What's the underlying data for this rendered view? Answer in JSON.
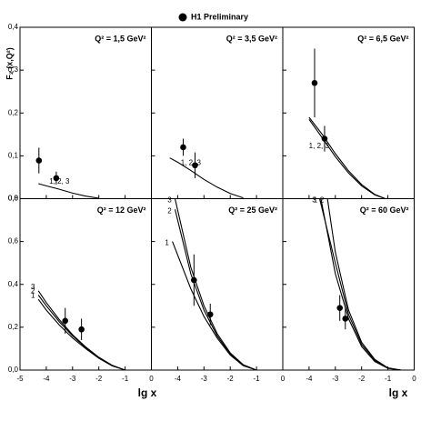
{
  "legend": "H1 Preliminary",
  "ylabel": "F₂ (x,Q²)",
  "xlabel": "lg x",
  "chart_data": [
    {
      "type": "scatter",
      "title": "Q² = 1,5 GeV²",
      "xlim": [
        -5,
        0
      ],
      "ylim": [
        0,
        0.4
      ],
      "yticks": [
        {
          "value": 0,
          "label": "0,0"
        },
        {
          "value": 0.1,
          "label": "0,1"
        },
        {
          "value": 0.2,
          "label": "0,2"
        },
        {
          "value": 0.3,
          "label": "0,3"
        },
        {
          "value": 0.4,
          "label": "0,4"
        }
      ],
      "x": [
        -4.28,
        -3.62
      ],
      "values": [
        0.089,
        0.048
      ],
      "errors": [
        0.03,
        0.015
      ],
      "curve_label": "1, 2, 3",
      "curves": [
        {
          "x": [
            -4.3,
            -4,
            -3.5,
            -3,
            -2.5,
            -2
          ],
          "values": [
            0.035,
            0.03,
            0.022,
            0.013,
            0.006,
            0.001
          ]
        }
      ]
    },
    {
      "type": "scatter",
      "title": "Q² = 3,5 GeV²",
      "xlim": [
        -5,
        0
      ],
      "ylim": [
        0,
        0.4
      ],
      "x": [
        -3.79,
        -3.34
      ],
      "values": [
        0.12,
        0.078
      ],
      "errors": [
        0.02,
        0.03
      ],
      "curve_label": "1, 2, 3",
      "curves": [
        {
          "x": [
            -4.3,
            -4,
            -3.5,
            -3,
            -2.5,
            -2,
            -1.5
          ],
          "values": [
            0.095,
            0.085,
            0.066,
            0.045,
            0.027,
            0.012,
            0.002
          ]
        }
      ]
    },
    {
      "type": "scatter",
      "title": "Q² = 6,5 GeV²",
      "xlim": [
        -5,
        0
      ],
      "ylim": [
        0,
        0.4
      ],
      "x": [
        -3.79,
        -3.41
      ],
      "values": [
        0.27,
        0.14
      ],
      "errors": [
        0.08,
        0.03
      ],
      "curve_label": "1, 2, 3",
      "curves": [
        {
          "x": [
            -4,
            -3.5,
            -3,
            -2.5,
            -2,
            -1.5,
            -1.1
          ],
          "values": [
            0.19,
            0.15,
            0.105,
            0.065,
            0.033,
            0.01,
            0
          ]
        },
        {
          "x": [
            -4,
            -3.5,
            -3,
            -2.5,
            -2,
            -1.5,
            -1.1
          ],
          "values": [
            0.185,
            0.142,
            0.098,
            0.06,
            0.03,
            0.009,
            0
          ]
        }
      ]
    },
    {
      "type": "scatter",
      "title": "Q² = 12 GeV²",
      "xlim": [
        -5,
        0
      ],
      "ylim": [
        0,
        0.8
      ],
      "xticks": [
        -5,
        -4,
        -3,
        -2,
        -1,
        0
      ],
      "yticks": [
        {
          "value": 0,
          "label": "0,0"
        },
        {
          "value": 0.2,
          "label": "0,2"
        },
        {
          "value": 0.4,
          "label": "0,4"
        },
        {
          "value": 0.6,
          "label": "0,6"
        },
        {
          "value": 0.8,
          "label": "0,8"
        }
      ],
      "x": [
        -3.28,
        -2.66
      ],
      "values": [
        0.23,
        0.19
      ],
      "errors": [
        0.06,
        0.05
      ],
      "curves": [
        {
          "name": "1",
          "x": [
            -4.3,
            -4,
            -3.5,
            -3,
            -2.5,
            -2,
            -1.5,
            -1
          ],
          "values": [
            0.33,
            0.28,
            0.21,
            0.15,
            0.1,
            0.055,
            0.02,
            0
          ]
        },
        {
          "name": "2",
          "x": [
            -4.3,
            -4,
            -3.5,
            -3,
            -2.5,
            -2,
            -1.5,
            -1
          ],
          "values": [
            0.35,
            0.3,
            0.225,
            0.16,
            0.105,
            0.058,
            0.022,
            0
          ]
        },
        {
          "name": "3",
          "x": [
            -4.3,
            -4,
            -3.5,
            -3,
            -2.5,
            -2,
            -1.5,
            -1
          ],
          "values": [
            0.37,
            0.315,
            0.235,
            0.165,
            0.108,
            0.06,
            0.023,
            0
          ]
        }
      ]
    },
    {
      "type": "scatter",
      "title": "Q² = 25 GeV²",
      "xlim": [
        -5,
        0
      ],
      "ylim": [
        0,
        0.8
      ],
      "xticks": [
        -4,
        -3,
        -2,
        -1,
        0
      ],
      "x": [
        -3.38,
        -2.76
      ],
      "values": [
        0.42,
        0.26
      ],
      "errors": [
        0.12,
        0.05
      ],
      "curves": [
        {
          "name": "1",
          "x": [
            -4.2,
            -3.5,
            -3,
            -2.5,
            -2,
            -1.5,
            -1
          ],
          "values": [
            0.6,
            0.38,
            0.25,
            0.15,
            0.07,
            0.02,
            0
          ]
        },
        {
          "name": "2",
          "x": [
            -4.1,
            -3.5,
            -3,
            -2.5,
            -2,
            -1.5,
            -1
          ],
          "values": [
            0.75,
            0.45,
            0.28,
            0.16,
            0.075,
            0.022,
            0
          ]
        },
        {
          "name": "3",
          "x": [
            -4.1,
            -3.5,
            -3,
            -2.5,
            -2,
            -1.5,
            -1
          ],
          "values": [
            0.8,
            0.48,
            0.3,
            0.17,
            0.08,
            0.025,
            0
          ]
        }
      ]
    },
    {
      "type": "scatter",
      "title": "Q² = 60 GeV²",
      "xlim": [
        -5,
        0
      ],
      "ylim": [
        0,
        0.8
      ],
      "xticks": [
        -4,
        -3,
        -2,
        -1,
        0
      ],
      "x": [
        -2.83,
        -2.62
      ],
      "values": [
        0.29,
        0.24
      ],
      "errors": [
        0.06,
        0.05
      ],
      "curves": [
        {
          "name": "1",
          "x": [
            -3.55,
            -3,
            -2.5,
            -2,
            -1.5,
            -1,
            -0.5
          ],
          "values": [
            0.8,
            0.45,
            0.24,
            0.11,
            0.04,
            0.008,
            0
          ]
        },
        {
          "name": "2",
          "x": [
            -3.3,
            -3,
            -2.5,
            -2,
            -1.5,
            -1,
            -0.5
          ],
          "values": [
            0.8,
            0.55,
            0.28,
            0.13,
            0.05,
            0.01,
            0
          ]
        },
        {
          "name": "3",
          "x": [
            -3.6,
            -3,
            -2.5,
            -2,
            -1.5,
            -1,
            -0.5
          ],
          "values": [
            0.8,
            0.5,
            0.26,
            0.12,
            0.045,
            0.009,
            0
          ]
        }
      ]
    }
  ]
}
